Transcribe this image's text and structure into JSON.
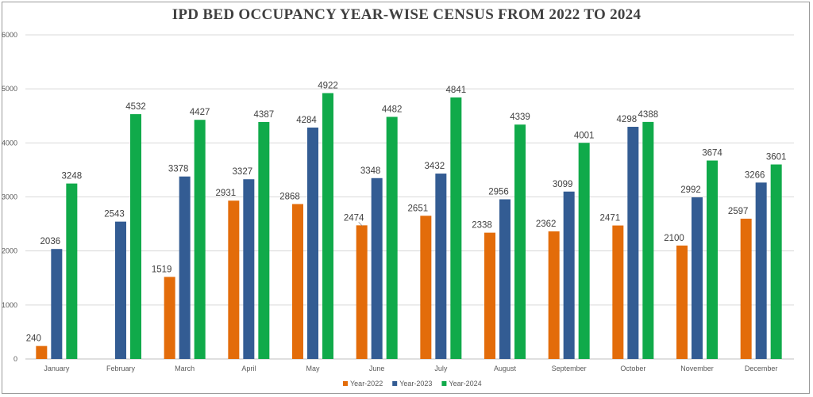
{
  "chart_data": {
    "type": "bar",
    "title": "IPD BED OCCUPANCY YEAR-WISE CENSUS FROM 2022 TO 2024",
    "categories": [
      "January",
      "February",
      "March",
      "April",
      "May",
      "June",
      "July",
      "August",
      "September",
      "October",
      "November",
      "December"
    ],
    "series": [
      {
        "name": "Year-2022",
        "color": "#E36C0A",
        "values": [
          240,
          null,
          1519,
          2931,
          2868,
          2474,
          2651,
          2338,
          2362,
          2471,
          2100,
          2597
        ]
      },
      {
        "name": "Year-2023",
        "color": "#335C93",
        "values": [
          2036,
          2543,
          3378,
          3327,
          4284,
          3348,
          3432,
          2956,
          3099,
          4298,
          2992,
          3266
        ]
      },
      {
        "name": "Year-2024",
        "color": "#10AA4A",
        "values": [
          3248,
          4532,
          4427,
          4387,
          4922,
          4482,
          4841,
          4339,
          4001,
          4388,
          3674,
          3601
        ]
      }
    ],
    "ylim": [
      0,
      6000
    ],
    "yticks": [
      0,
      1000,
      2000,
      3000,
      4000,
      5000,
      6000
    ],
    "grid": true,
    "legend": "bottom-center",
    "xlabel": "",
    "ylabel": ""
  }
}
